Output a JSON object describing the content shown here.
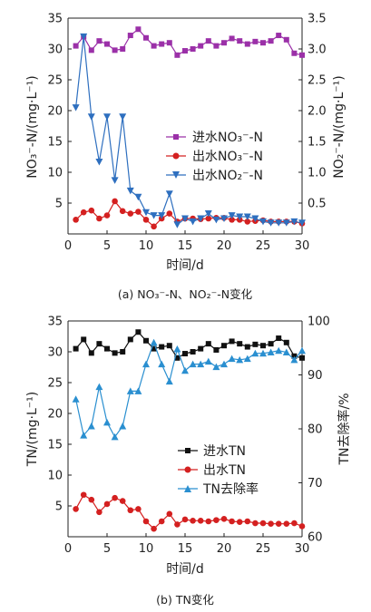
{
  "chart_data": [
    {
      "type": "line",
      "caption": "(a) NO₃⁻-N、NO₂⁻-N变化",
      "xlabel": "时间/d",
      "ylabel_left": "NO₃⁻-N/(mg·L⁻¹)",
      "ylabel_right": "NO₂⁻-N/(mg·L⁻¹)",
      "xlim": [
        0,
        30
      ],
      "ylim_left": [
        0,
        35
      ],
      "ylim_right": [
        0,
        3.5
      ],
      "x_ticks": [
        "0",
        "5",
        "10",
        "15",
        "20",
        "25",
        "30"
      ],
      "y_left_ticks": [
        "5",
        "10",
        "15",
        "20",
        "25",
        "30",
        "35"
      ],
      "y_right_ticks": [
        "0.5",
        "1.0",
        "1.5",
        "2.0",
        "2.5",
        "3.0",
        "3.5"
      ],
      "legend_position": "center-right",
      "series": [
        {
          "name": "进水NO₃⁻-N",
          "axis": "left",
          "color": "#9b30a8",
          "marker": "square",
          "x": [
            1,
            2,
            3,
            4,
            5,
            6,
            7,
            8,
            9,
            10,
            11,
            12,
            13,
            14,
            15,
            16,
            17,
            18,
            19,
            20,
            21,
            22,
            23,
            24,
            25,
            26,
            27,
            28,
            29,
            30
          ],
          "values": [
            30.5,
            32.0,
            29.8,
            31.3,
            30.8,
            29.8,
            30.0,
            32.2,
            33.2,
            31.8,
            30.5,
            30.8,
            31.0,
            29.0,
            29.7,
            30.0,
            30.5,
            31.3,
            30.5,
            31.0,
            31.7,
            31.3,
            30.8,
            31.2,
            31.0,
            31.3,
            32.2,
            31.5,
            29.3,
            29.0
          ]
        },
        {
          "name": "出水NO₃⁻-N",
          "axis": "left",
          "color": "#d42020",
          "marker": "circle",
          "x": [
            1,
            2,
            3,
            4,
            5,
            6,
            7,
            8,
            9,
            10,
            11,
            12,
            13,
            14,
            15,
            16,
            17,
            18,
            19,
            20,
            21,
            22,
            23,
            24,
            25,
            26,
            27,
            28,
            29,
            30
          ],
          "values": [
            2.3,
            3.5,
            3.8,
            2.5,
            3.0,
            5.3,
            3.7,
            3.3,
            3.6,
            2.3,
            1.2,
            2.5,
            3.3,
            2.0,
            2.5,
            2.5,
            2.4,
            2.5,
            2.6,
            2.6,
            2.3,
            2.3,
            2.0,
            2.1,
            2.2,
            2.0,
            2.0,
            2.0,
            2.0,
            1.7
          ]
        },
        {
          "name": "出水NO₂⁻-N",
          "axis": "right",
          "color": "#2e6fbf",
          "marker": "triangle-down",
          "x": [
            1,
            2,
            3,
            4,
            5,
            6,
            7,
            8,
            9,
            10,
            11,
            12,
            13,
            14,
            15,
            16,
            17,
            18,
            19,
            20,
            21,
            22,
            23,
            24,
            25,
            26,
            27,
            28,
            29,
            30
          ],
          "values": [
            2.05,
            3.2,
            1.9,
            1.17,
            1.9,
            0.87,
            1.9,
            0.7,
            0.6,
            0.35,
            0.3,
            0.3,
            0.65,
            0.15,
            0.25,
            0.2,
            0.25,
            0.33,
            0.23,
            0.25,
            0.3,
            0.28,
            0.28,
            0.25,
            0.2,
            0.18,
            0.18,
            0.18,
            0.2,
            0.18
          ]
        }
      ]
    },
    {
      "type": "line",
      "caption": "(b) TN变化",
      "xlabel": "时间/d",
      "ylabel_left": "TN/(mg·L⁻¹)",
      "ylabel_right": "TN去除率/%",
      "xlim": [
        0,
        30
      ],
      "ylim_left": [
        0,
        35
      ],
      "ylim_right": [
        60,
        100
      ],
      "x_ticks": [
        "0",
        "5",
        "10",
        "15",
        "20",
        "25",
        "30"
      ],
      "y_left_ticks": [
        "5",
        "10",
        "15",
        "20",
        "25",
        "30",
        "35"
      ],
      "y_right_ticks": [
        "60",
        "70",
        "80",
        "90",
        "100"
      ],
      "legend_position": "center-right",
      "series": [
        {
          "name": "进水TN",
          "axis": "left",
          "color": "#111111",
          "marker": "square",
          "x": [
            1,
            2,
            3,
            4,
            5,
            6,
            7,
            8,
            9,
            10,
            11,
            12,
            13,
            14,
            15,
            16,
            17,
            18,
            19,
            20,
            21,
            22,
            23,
            24,
            25,
            26,
            27,
            28,
            29,
            30
          ],
          "values": [
            30.5,
            32.0,
            29.8,
            31.3,
            30.5,
            29.8,
            30.0,
            32.0,
            33.2,
            31.8,
            30.5,
            30.8,
            31.0,
            29.0,
            29.7,
            30.0,
            30.5,
            31.3,
            30.3,
            31.0,
            31.7,
            31.3,
            30.8,
            31.2,
            31.0,
            31.3,
            32.2,
            31.5,
            29.3,
            29.0
          ]
        },
        {
          "name": "出水TN",
          "axis": "left",
          "color": "#d42020",
          "marker": "circle",
          "x": [
            1,
            2,
            3,
            4,
            5,
            6,
            7,
            8,
            9,
            10,
            11,
            12,
            13,
            14,
            15,
            16,
            17,
            18,
            19,
            20,
            21,
            22,
            23,
            24,
            25,
            26,
            27,
            28,
            29,
            30
          ],
          "values": [
            4.5,
            6.8,
            6.0,
            4.0,
            5.3,
            6.3,
            5.8,
            4.3,
            4.5,
            2.5,
            1.3,
            2.5,
            3.7,
            2.0,
            2.8,
            2.6,
            2.6,
            2.5,
            2.7,
            2.9,
            2.5,
            2.4,
            2.5,
            2.2,
            2.2,
            2.1,
            2.1,
            2.1,
            2.2,
            1.7
          ]
        },
        {
          "name": "TN去除率",
          "axis": "right",
          "color": "#2a8fd0",
          "marker": "triangle-up",
          "x": [
            1,
            2,
            3,
            4,
            5,
            6,
            7,
            8,
            9,
            10,
            11,
            12,
            13,
            14,
            15,
            16,
            17,
            18,
            19,
            20,
            21,
            22,
            23,
            24,
            25,
            26,
            27,
            28,
            29,
            30
          ],
          "values": [
            85.5,
            78.8,
            80.5,
            87.8,
            81.2,
            78.5,
            80.5,
            87.0,
            87.0,
            92.0,
            96.0,
            92.0,
            88.8,
            94.8,
            90.8,
            92.0,
            92.0,
            92.5,
            91.5,
            92.0,
            93.0,
            92.8,
            93.0,
            94.0,
            94.0,
            94.2,
            94.5,
            94.2,
            92.8,
            94.5
          ]
        }
      ]
    }
  ]
}
